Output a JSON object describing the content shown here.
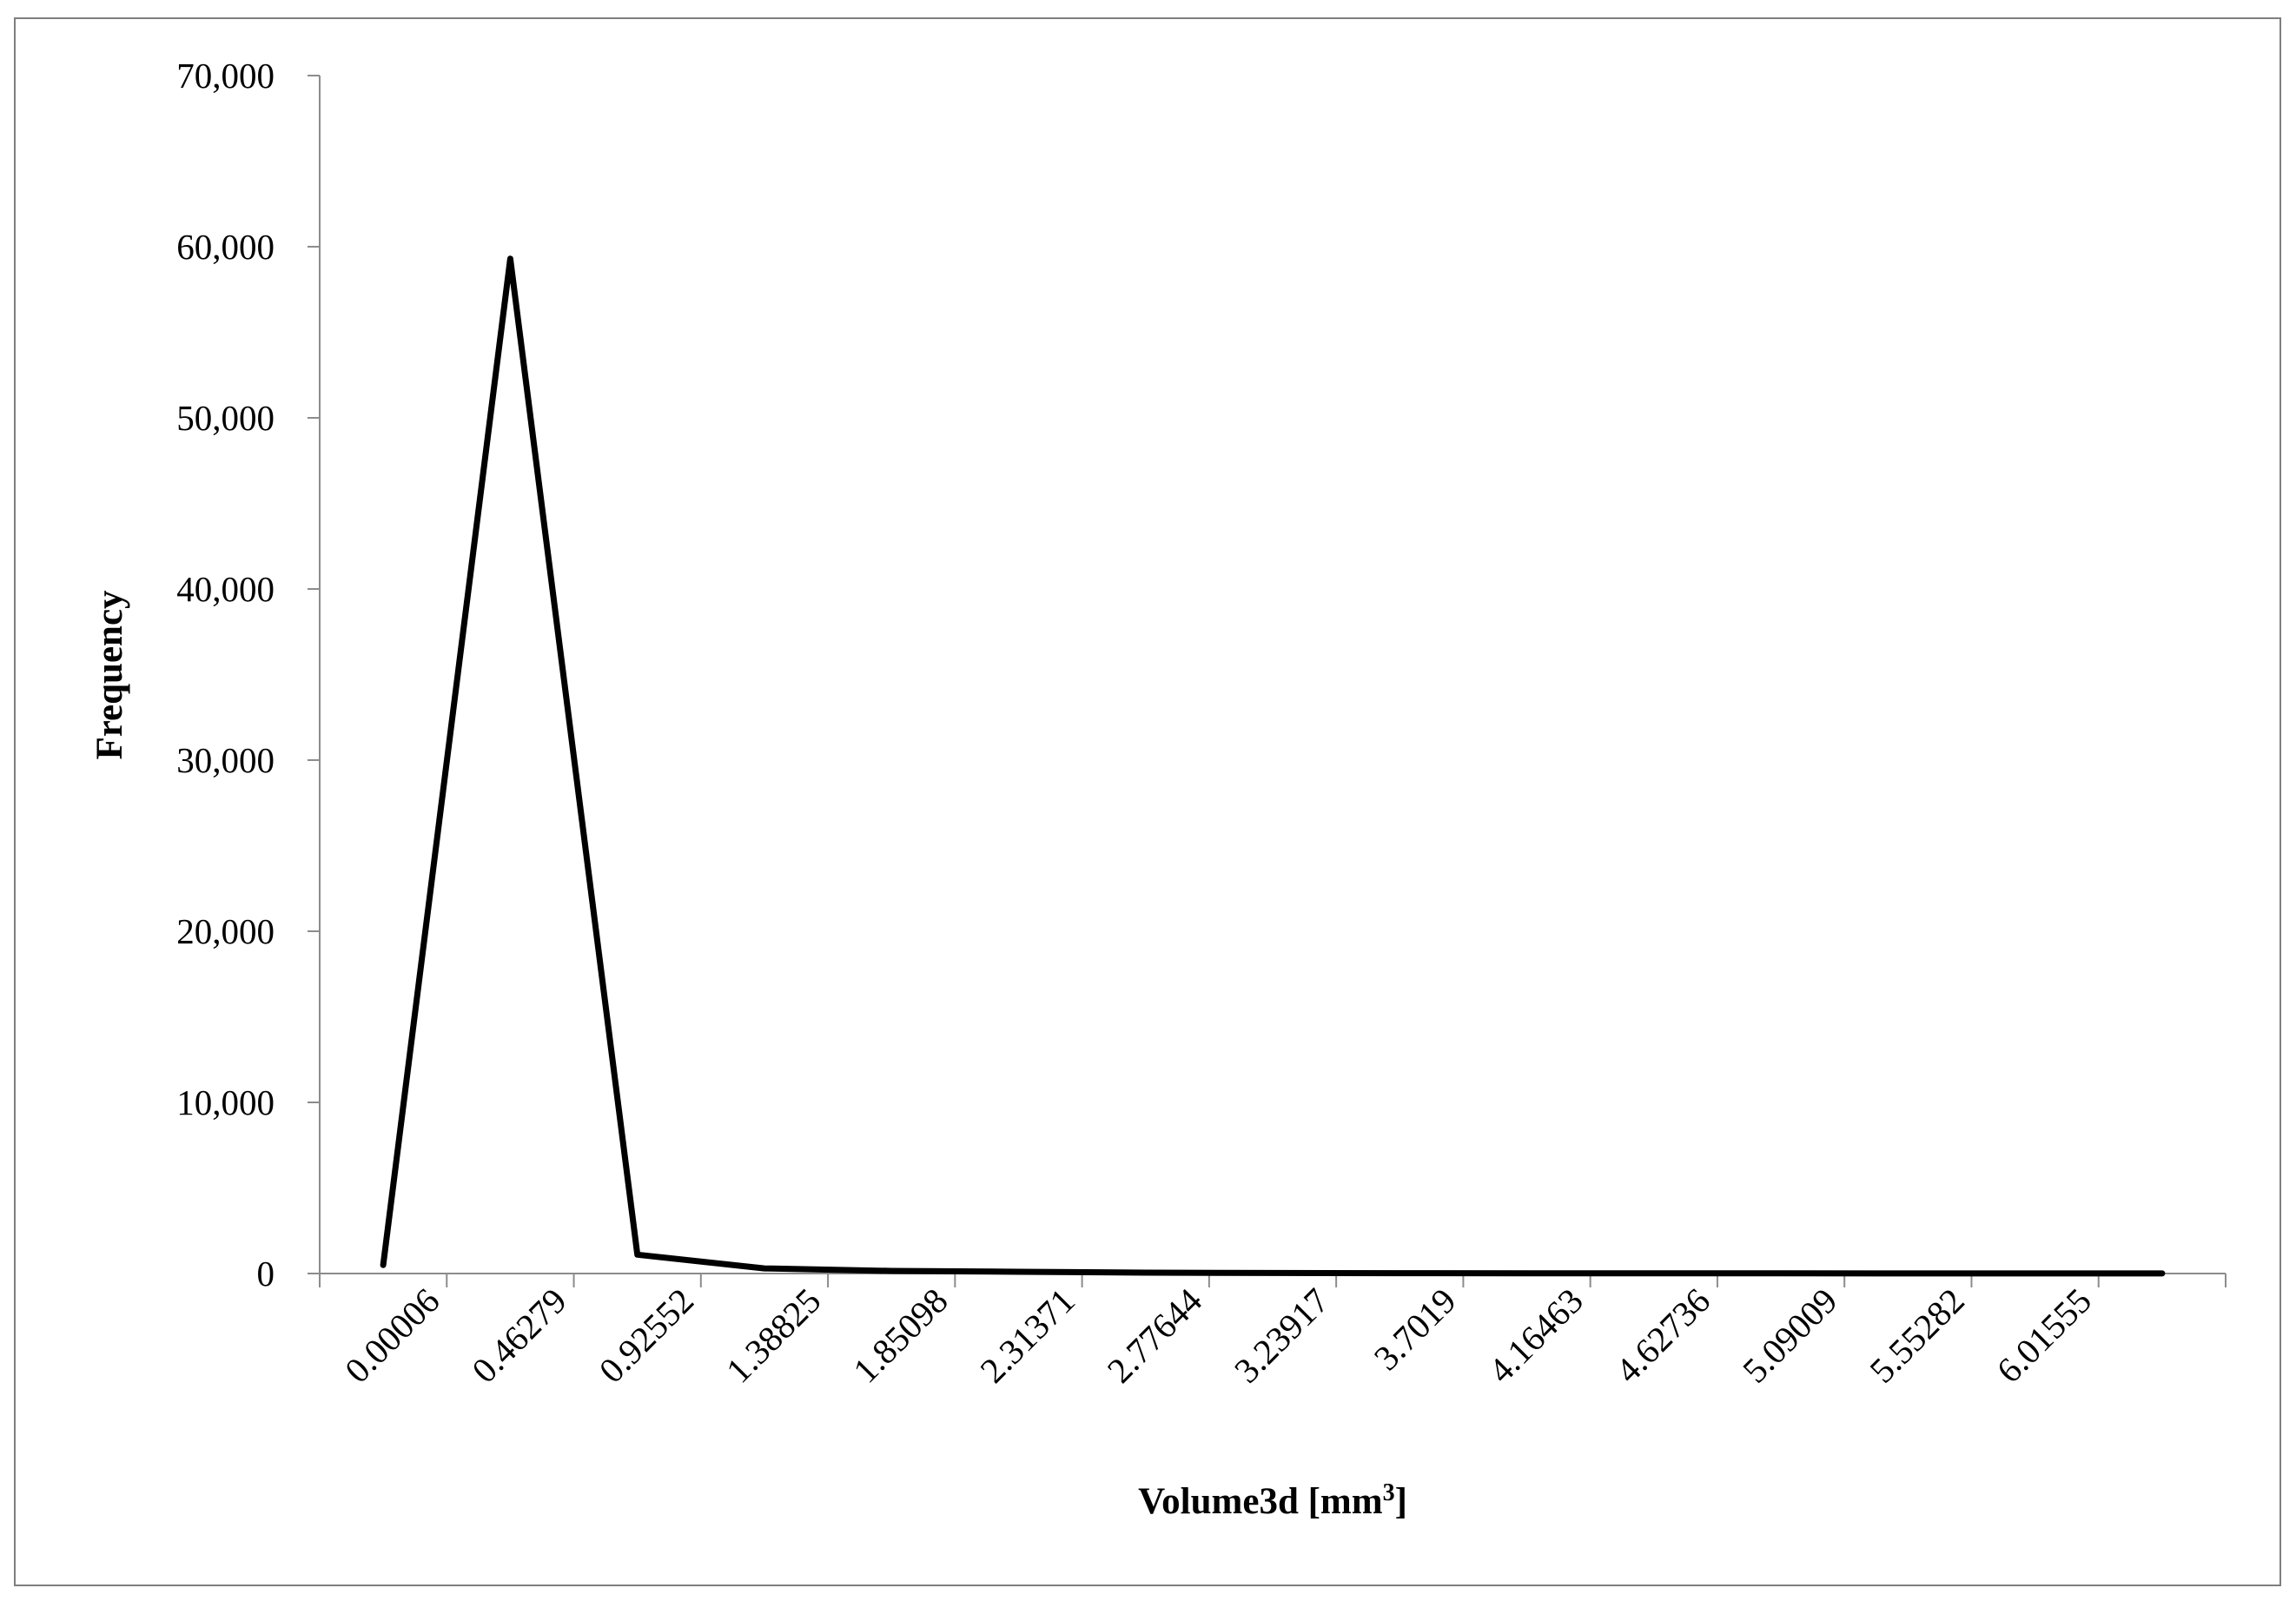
{
  "chart_data": {
    "type": "line",
    "title": "",
    "xlabel": "Volume3d [mm",
    "xlabel_sup": "3",
    "xlabel_end": "]",
    "ylabel": "Frequency",
    "ylim": [
      0,
      70000
    ],
    "yticks": [
      0,
      10000,
      20000,
      30000,
      40000,
      50000,
      60000,
      70000
    ],
    "ytick_labels": [
      "0",
      "10,000",
      "20,000",
      "30,000",
      "40,000",
      "50,000",
      "60,000",
      "70,000"
    ],
    "categories": [
      "0.00006",
      "0.46279",
      "0.92552",
      "1.38825",
      "1.85098",
      "2.31371",
      "2.77644",
      "3.23917",
      "3.7019",
      "4.16463",
      "4.62736",
      "5.09009",
      "5.55282",
      "6.01555",
      ""
    ],
    "series": [
      {
        "values": [
          500,
          59300,
          1100,
          300,
          150,
          100,
          50,
          30,
          20,
          15,
          10,
          10,
          5,
          5,
          5
        ],
        "color": "#000000"
      }
    ],
    "grid": false,
    "legend": "none"
  }
}
